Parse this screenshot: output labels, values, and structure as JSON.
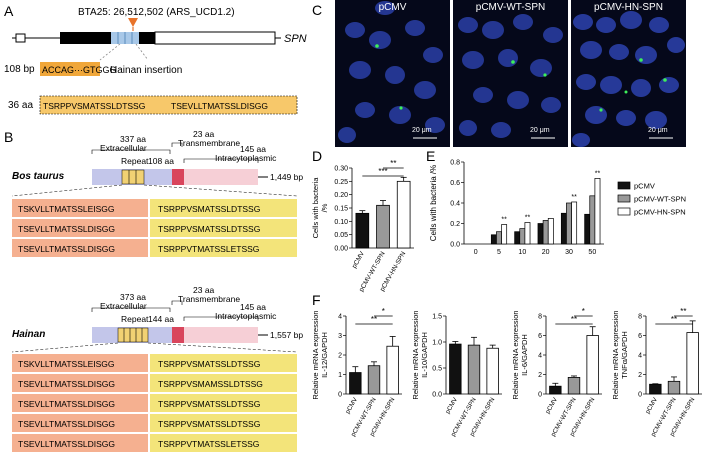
{
  "panel_labels": {
    "A": "A",
    "B": "B",
    "C": "C",
    "D": "D",
    "E": "E",
    "F": "F"
  },
  "panelA": {
    "locus": "BTA25: 26,512,502 (ARS_UCD1.2)",
    "gene": "SPN",
    "insert_bp": "108 bp",
    "insert_seq": "ACCAG···GTGGG",
    "insert_label": "Hainan insertion",
    "insert_aa": "36 aa",
    "peptides": [
      "TSRPPVSMATSSLDTSSG",
      "TSEVLLTMATSSLDISGG"
    ]
  },
  "panelB": {
    "bos": {
      "species": "Bos taurus",
      "extracellular": "337 aa",
      "extracellular_label": "Extracellular",
      "tm": "23 aa",
      "tm_label": "Transmembrane",
      "intra": "145 aa",
      "intra_label": "Intracytoplasmic",
      "repeat_label": "Repeat",
      "repeat": "108 aa",
      "length": "1,449 bp",
      "rows": [
        [
          "TSKVLLTMATSSLEISGG",
          "TSRPPVSMATSSLDTSSG"
        ],
        [
          "TSEVLLTMATSSLDISGG",
          "TSRPPVSMATSSLDTSSG"
        ],
        [
          "TSEVLLTMATSSLDISGG",
          "TSRPPVTMATSSLETSSG"
        ]
      ]
    },
    "hainan": {
      "species": "Hainan",
      "extracellular": "373 aa",
      "extracellular_label": "Extracellular",
      "tm": "23 aa",
      "tm_label": "Transmembrane",
      "intra": "145 aa",
      "intra_label": "Intracytoplasmic",
      "repeat_label": "Repeat",
      "repeat": "144 aa",
      "length": "1,557 bp",
      "rows": [
        [
          "TSKVLLTMATSSLEISGG",
          "TSRPPVSMATSSLDTSSG"
        ],
        [
          "TSEVLLTMATSSLDISGG",
          "TSRPPVSMAMSSLDTSSG"
        ],
        [
          "TSEVLLTMATSSLDISGG",
          "TSRPPVSMATSSLDTSSG"
        ],
        [
          "TSEVLLTMATSSLDISGG",
          "TSRPPVSMATSSLDTSSG"
        ],
        [
          "TSEVLLTMATSSLDISGG",
          "TSRPPVTMATSSLETSSG"
        ]
      ]
    }
  },
  "panelC": {
    "images": [
      {
        "title": "pCMV",
        "scale": "20 μm"
      },
      {
        "title": "pCMV-WT-SPN",
        "scale": "20 μm"
      },
      {
        "title": "pCMV-HN-SPN",
        "scale": "20 μm"
      }
    ]
  },
  "chart_data": [
    {
      "id": "D",
      "type": "bar",
      "ylabel": "Cells with bacteria /%",
      "categories": [
        "pCMV",
        "pCMV-WT-SPN",
        "pCMV-HN-SPN"
      ],
      "values": [
        0.13,
        0.16,
        0.25
      ],
      "errors": [
        0.01,
        0.018,
        0.015
      ],
      "ylim": [
        0,
        0.3
      ],
      "yticks": [
        "0.00",
        "0.05",
        "0.10",
        "0.15",
        "0.20",
        "0.25",
        "0.30"
      ],
      "sig": [
        "**",
        "***"
      ]
    },
    {
      "id": "E",
      "type": "bar",
      "ylabel": "Cells with bacteria /%",
      "categories": [
        "0",
        "5",
        "10",
        "20",
        "30",
        "50"
      ],
      "ylim": [
        0,
        0.8
      ],
      "yticks": [
        "0.0",
        "0.2",
        "0.4",
        "0.6",
        "0.8"
      ],
      "series": [
        {
          "name": "pCMV",
          "values": [
            0,
            0.09,
            0.12,
            0.2,
            0.3,
            0.29
          ]
        },
        {
          "name": "pCMV-WT-SPN",
          "values": [
            0,
            0.12,
            0.15,
            0.23,
            0.4,
            0.47
          ]
        },
        {
          "name": "pCMV-HN-SPN",
          "values": [
            0,
            0.19,
            0.21,
            0.25,
            0.41,
            0.64
          ]
        }
      ],
      "stars": [
        "",
        "**",
        "**",
        "",
        "**",
        "**"
      ]
    },
    {
      "id": "F1",
      "type": "bar",
      "ylabel": "Relative mRNA expression IL-12/GAPDH",
      "categories": [
        "pCMV",
        "pCMV-WT-SPN",
        "pCMV-HN-SPN"
      ],
      "values": [
        1.1,
        1.45,
        2.45
      ],
      "errors": [
        0.3,
        0.2,
        0.5
      ],
      "ylim": [
        0,
        4
      ],
      "yticks": [
        "0",
        "1",
        "2",
        "3",
        "4"
      ],
      "sig": [
        "*",
        "**"
      ]
    },
    {
      "id": "F2",
      "type": "bar",
      "ylabel": "Relative mRNA expression IL-10/GAPDH",
      "categories": [
        "pCMV",
        "pCMV-WT-SPN",
        "pCMV-HN-SPN"
      ],
      "values": [
        0.96,
        0.94,
        0.88
      ],
      "errors": [
        0.05,
        0.15,
        0.06
      ],
      "ylim": [
        0,
        1.5
      ],
      "yticks": [
        "0.0",
        "0.5",
        "1.0",
        "1.5"
      ],
      "sig": []
    },
    {
      "id": "F3",
      "type": "bar",
      "ylabel": "Relative mRNA expression IL-6/GAPDH",
      "categories": [
        "pCMV",
        "pCMV-WT-SPN",
        "pCMV-HN-SPN"
      ],
      "values": [
        0.8,
        1.7,
        6.0
      ],
      "errors": [
        0.3,
        0.15,
        0.9
      ],
      "ylim": [
        0,
        8
      ],
      "yticks": [
        "0",
        "2",
        "4",
        "6",
        "8"
      ],
      "sig": [
        "*",
        "**"
      ]
    },
    {
      "id": "F4",
      "type": "bar",
      "ylabel": "Relative mRNA expression TNFα/GAPDH",
      "categories": [
        "pCMV",
        "pCMV-WT-SPN",
        "pCMV-HN-SPN"
      ],
      "values": [
        1.0,
        1.3,
        6.3
      ],
      "errors": [
        0.05,
        0.45,
        1.2
      ],
      "ylim": [
        0,
        8
      ],
      "yticks": [
        "0",
        "2",
        "4",
        "6",
        "8"
      ],
      "sig": [
        "**",
        "**"
      ]
    }
  ]
}
